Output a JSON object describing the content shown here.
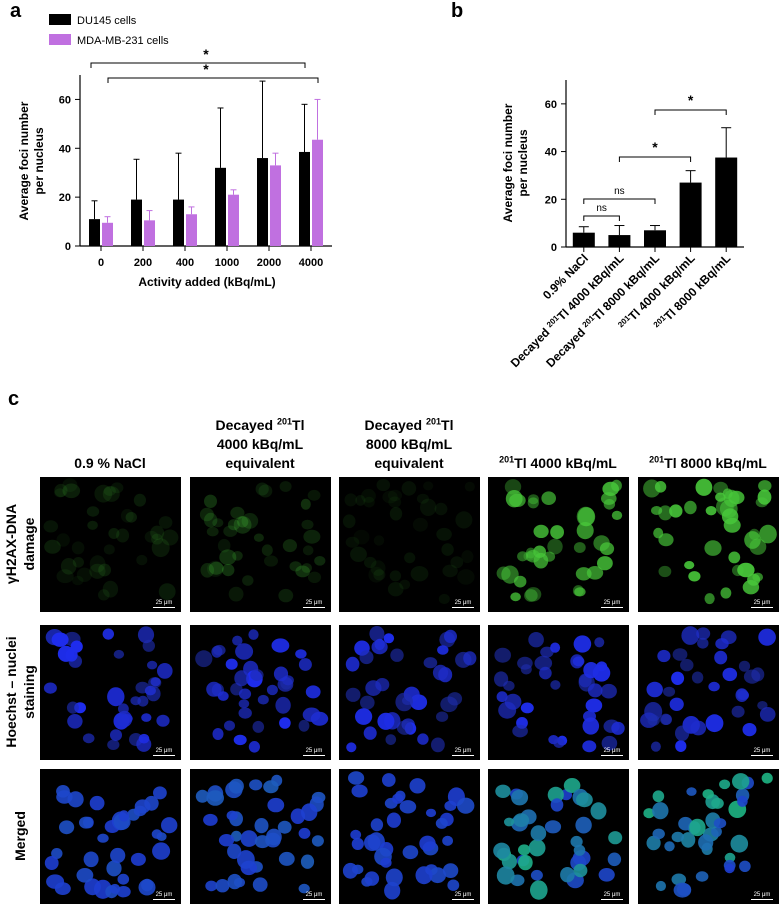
{
  "panels": {
    "a": "a",
    "b": "b",
    "c": "c"
  },
  "chart_data": [
    {
      "type": "bar",
      "xlabel": "Activity added (kBq/mL)",
      "ylabel": "Average foci number\nper nucleus",
      "ylim": [
        0,
        70
      ],
      "yticks": [
        0,
        20,
        40,
        60
      ],
      "categories": [
        "0",
        "200",
        "400",
        "1000",
        "2000",
        "4000"
      ],
      "series": [
        {
          "name": "DU145 cells",
          "color": "#000000",
          "values": [
            11,
            19,
            19,
            32,
            36,
            38.5
          ],
          "errors": [
            7.5,
            16.5,
            19,
            24.5,
            31.5,
            19.5
          ]
        },
        {
          "name": "MDA-MB-231 cells",
          "color": "#c070e0",
          "values": [
            9.5,
            10.5,
            13,
            21,
            33,
            43.5
          ],
          "errors": [
            2.5,
            4,
            3,
            2,
            5,
            16.5
          ]
        }
      ],
      "legend": "top-left",
      "significance": [
        "*",
        "*"
      ]
    },
    {
      "type": "bar",
      "ylabel": "Average foci number\nper nucleus",
      "ylim": [
        0,
        70
      ],
      "yticks": [
        0,
        20,
        40,
        60
      ],
      "categories": [
        "0.9% NaCl",
        "Decayed |201|Tl 4000 kBq/mL",
        "Decayed |201|Tl 8000 kBq/mL",
        "|201|Tl 4000 kBq/mL",
        "|201|Tl 8000 kBq/mL"
      ],
      "series": [
        {
          "color": "#000000",
          "values": [
            6,
            5,
            7,
            27,
            37.5
          ],
          "errors": [
            2.5,
            4,
            2,
            5,
            12.5
          ]
        }
      ],
      "significance": [
        "ns",
        "ns",
        "*",
        "*"
      ]
    }
  ],
  "micrographs": {
    "columns": [
      [
        "0.9 % NaCl"
      ],
      [
        "Decayed |201|Tl",
        "4000 kBq/mL",
        "equivalent"
      ],
      [
        "Decayed |201|Tl",
        "8000 kBq/mL",
        "equivalent"
      ],
      [
        "|201|Tl 4000 kBq/mL"
      ],
      [
        "|201|Tl 8000 kBq/mL"
      ]
    ],
    "rows": [
      [
        "γH2AX-DNA",
        "damage"
      ],
      [
        "Hoechst – nuclei",
        "staining"
      ],
      [
        "Merged"
      ]
    ],
    "scale_bar": "25 μm",
    "colors": {
      "background": "#000000",
      "nuclei": "#1a2bd8",
      "foci": "#48c83a"
    }
  }
}
